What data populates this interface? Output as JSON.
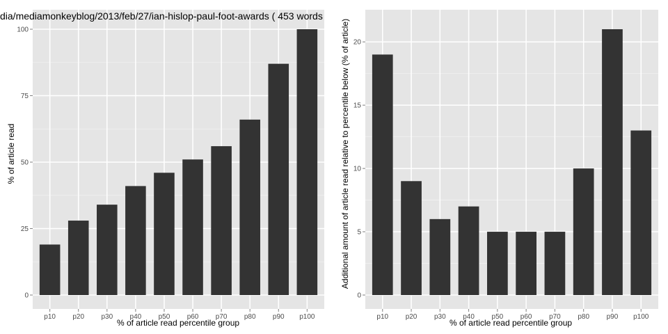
{
  "chart_data": [
    {
      "type": "bar",
      "title": "dia/mediamonkeyblog/2013/feb/27/ian-hislop-paul-foot-awards ( 453 words",
      "xlabel": "% of article read percentile group",
      "ylabel": "% of article read",
      "categories": [
        "p10",
        "p20",
        "p30",
        "p40",
        "p50",
        "p60",
        "p70",
        "p80",
        "p90",
        "p100"
      ],
      "values": [
        19,
        28,
        34,
        41,
        46,
        51,
        56,
        66,
        87,
        100
      ],
      "yticks": [
        "0",
        "25",
        "50",
        "75",
        "100"
      ],
      "ylim": [
        0,
        100
      ],
      "grid": true,
      "colors": {
        "bar": "#333333",
        "panel": "#e5e5e5",
        "grid_major": "#ffffff",
        "grid_minor": "#f2f2f2"
      }
    },
    {
      "type": "bar",
      "title": "",
      "xlabel": "% of article read percentile group",
      "ylabel": "Additional amount of article read relative to percentile below (% of article)",
      "categories": [
        "p10",
        "p20",
        "p30",
        "p40",
        "p50",
        "p60",
        "p70",
        "p80",
        "p90",
        "p100"
      ],
      "values": [
        19,
        9,
        6,
        7,
        5,
        5,
        5,
        10,
        21,
        13
      ],
      "yticks": [
        "0",
        "5",
        "10",
        "15",
        "20"
      ],
      "ylim": [
        0,
        21
      ],
      "grid": true,
      "colors": {
        "bar": "#333333",
        "panel": "#e5e5e5",
        "grid_major": "#ffffff",
        "grid_minor": "#f2f2f2"
      }
    }
  ]
}
